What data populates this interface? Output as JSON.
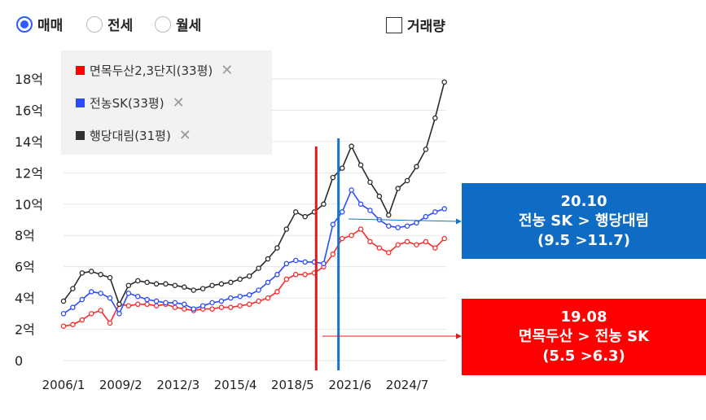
{
  "controls": {
    "radios": [
      {
        "label": "매매",
        "selected": true
      },
      {
        "label": "전세",
        "selected": false
      },
      {
        "label": "월세",
        "selected": false
      }
    ],
    "volume_checkbox": {
      "label": "거래량",
      "checked": false
    }
  },
  "legend": {
    "items": [
      {
        "label": "면목두산2,3단지(33평)",
        "color": "#ff0000",
        "remove": "✕"
      },
      {
        "label": "전농SK(33평)",
        "color": "#2c4bff",
        "remove": "✕"
      },
      {
        "label": "행당대림(31평)",
        "color": "#333333",
        "remove": "✕"
      }
    ]
  },
  "callouts": {
    "blue": {
      "line1": "20.10",
      "line2": "전농 SK > 행당대림",
      "line3": "(9.5 >11.7)",
      "color": "#0f6cc4"
    },
    "red": {
      "line1": "19.08",
      "line2": "면목두산 > 전농 SK",
      "line3": "(5.5 >6.3)",
      "color": "#ff0000"
    }
  },
  "chart_data": {
    "type": "line",
    "y_tick_labels": [
      "0",
      "2억",
      "4억",
      "6억",
      "8억",
      "10억",
      "12억",
      "14억",
      "16억",
      "18억"
    ],
    "y_ticks": [
      0,
      2,
      4,
      6,
      8,
      10,
      12,
      14,
      16,
      18
    ],
    "x_tick_labels": [
      "2006/1",
      "2009/2",
      "2012/3",
      "2015/4",
      "2018/5",
      "2021/6",
      "2024/7"
    ],
    "x_ticks": [
      2006.0,
      2009.08,
      2012.17,
      2015.25,
      2018.33,
      2021.42,
      2024.5
    ],
    "xlim": [
      2006.0,
      2026.6
    ],
    "ylim": [
      0,
      18
    ],
    "grid": "horizontal",
    "markers": [
      {
        "x": 2019.6,
        "color": "#e0191b"
      },
      {
        "x": 2020.8,
        "color": "#1573c8"
      }
    ],
    "series": [
      {
        "name": "면목두산2,3단지(33평)",
        "color": "#ff2a2a",
        "x": [
          2006.0,
          2006.5,
          2007.0,
          2007.5,
          2008.0,
          2008.5,
          2009.0,
          2009.5,
          2010.0,
          2010.5,
          2011.0,
          2011.5,
          2012.0,
          2012.5,
          2013.0,
          2013.5,
          2014.0,
          2014.5,
          2015.0,
          2015.5,
          2016.0,
          2016.5,
          2017.0,
          2017.5,
          2018.0,
          2018.5,
          2019.0,
          2019.5,
          2020.0,
          2020.5,
          2021.0,
          2021.5,
          2022.0,
          2022.5,
          2023.0,
          2023.5,
          2024.0,
          2024.5,
          2025.0,
          2025.5,
          2026.0,
          2026.5
        ],
        "y": [
          2.2,
          2.3,
          2.6,
          3.0,
          3.2,
          2.4,
          3.6,
          3.5,
          3.6,
          3.6,
          3.5,
          3.6,
          3.4,
          3.3,
          3.2,
          3.3,
          3.3,
          3.4,
          3.4,
          3.5,
          3.6,
          3.8,
          4.0,
          4.4,
          5.2,
          5.5,
          5.5,
          5.6,
          6.0,
          6.8,
          7.8,
          8.0,
          8.4,
          7.6,
          7.2,
          6.9,
          7.4,
          7.6,
          7.4,
          7.6,
          7.2,
          7.8
        ]
      },
      {
        "name": "전농SK(33평)",
        "color": "#2c4bff",
        "x": [
          2006.0,
          2006.5,
          2007.0,
          2007.5,
          2008.0,
          2008.5,
          2009.0,
          2009.5,
          2010.0,
          2010.5,
          2011.0,
          2011.5,
          2012.0,
          2012.5,
          2013.0,
          2013.5,
          2014.0,
          2014.5,
          2015.0,
          2015.5,
          2016.0,
          2016.5,
          2017.0,
          2017.5,
          2018.0,
          2018.5,
          2019.0,
          2019.5,
          2020.0,
          2020.5,
          2021.0,
          2021.5,
          2022.0,
          2022.5,
          2023.0,
          2023.5,
          2024.0,
          2024.5,
          2025.0,
          2025.5,
          2026.0,
          2026.5
        ],
        "y": [
          3.0,
          3.4,
          3.9,
          4.4,
          4.3,
          4.0,
          3.0,
          4.3,
          4.1,
          3.9,
          3.8,
          3.7,
          3.7,
          3.6,
          3.3,
          3.5,
          3.7,
          3.8,
          4.0,
          4.1,
          4.2,
          4.5,
          5.0,
          5.5,
          6.2,
          6.4,
          6.3,
          6.3,
          6.2,
          8.7,
          9.5,
          10.9,
          10.0,
          9.6,
          9.0,
          8.6,
          8.5,
          8.6,
          8.8,
          9.2,
          9.5,
          9.7
        ]
      },
      {
        "name": "행당대림(31평)",
        "color": "#2b2b2b",
        "x": [
          2006.0,
          2006.5,
          2007.0,
          2007.5,
          2008.0,
          2008.5,
          2009.0,
          2009.5,
          2010.0,
          2010.5,
          2011.0,
          2011.5,
          2012.0,
          2012.5,
          2013.0,
          2013.5,
          2014.0,
          2014.5,
          2015.0,
          2015.5,
          2016.0,
          2016.5,
          2017.0,
          2017.5,
          2018.0,
          2018.5,
          2019.0,
          2019.5,
          2020.0,
          2020.5,
          2021.0,
          2021.5,
          2022.0,
          2022.5,
          2023.0,
          2023.5,
          2024.0,
          2024.5,
          2025.0,
          2025.5,
          2026.0,
          2026.5
        ],
        "y": [
          3.8,
          4.6,
          5.6,
          5.7,
          5.5,
          5.3,
          3.6,
          4.8,
          5.1,
          5.0,
          4.9,
          4.9,
          4.8,
          4.7,
          4.5,
          4.6,
          4.8,
          4.9,
          5.0,
          5.2,
          5.4,
          5.9,
          6.5,
          7.2,
          8.4,
          9.5,
          9.2,
          9.5,
          10.0,
          11.7,
          12.3,
          13.7,
          12.5,
          11.4,
          10.5,
          9.3,
          11.0,
          11.5,
          12.4,
          13.5,
          15.5,
          17.8
        ]
      }
    ]
  }
}
